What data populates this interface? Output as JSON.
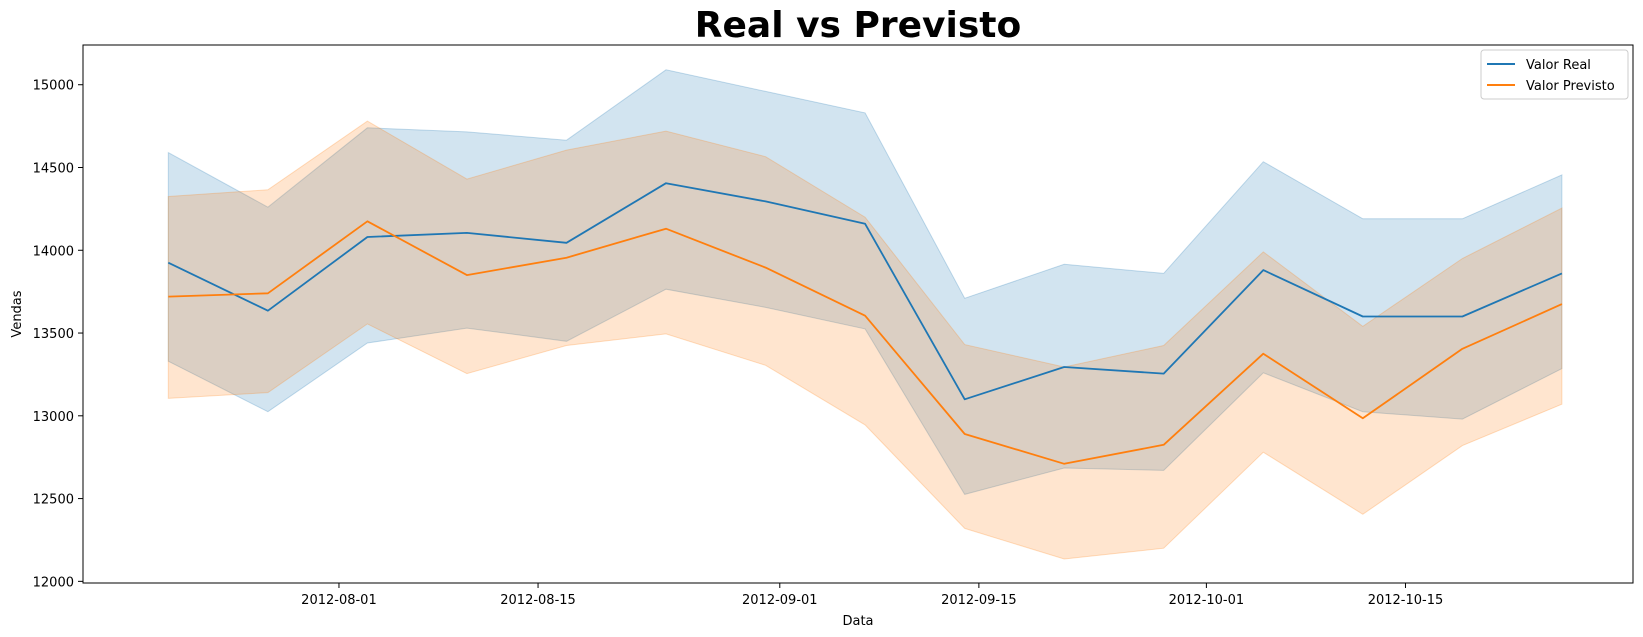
{
  "chart_data": {
    "type": "line",
    "title": "Real vs Previsto",
    "xlabel": "Data",
    "ylabel": "Vendas",
    "x_ticks": [
      "2012-08-01",
      "2012-08-15",
      "2012-09-01",
      "2012-09-15",
      "2012-10-01",
      "2012-10-15"
    ],
    "y_ticks": [
      12000,
      12500,
      13000,
      13500,
      14000,
      14500,
      15000
    ],
    "xlim": [
      "2012-07-14",
      "2012-10-31"
    ],
    "ylim": [
      11990,
      15240
    ],
    "legend_position": "top-right",
    "grid": false,
    "x": [
      "2012-07-20",
      "2012-07-27",
      "2012-08-03",
      "2012-08-10",
      "2012-08-17",
      "2012-08-24",
      "2012-08-31",
      "2012-09-07",
      "2012-09-14",
      "2012-09-21",
      "2012-09-28",
      "2012-10-05",
      "2012-10-12",
      "2012-10-19",
      "2012-10-26"
    ],
    "series": [
      {
        "name": "Valor Real",
        "color": "#1f77b4",
        "values": [
          13925,
          13635,
          14080,
          14105,
          14045,
          14405,
          14295,
          14160,
          13100,
          13295,
          13255,
          13880,
          13600,
          13600,
          13860
        ],
        "ci_lower": [
          13330,
          13025,
          13440,
          13530,
          13450,
          13765,
          13655,
          13525,
          12525,
          12685,
          12670,
          13260,
          13025,
          12980,
          13285
        ],
        "ci_upper": [
          14590,
          14260,
          14740,
          14715,
          14665,
          15090,
          14960,
          14830,
          13710,
          13915,
          13860,
          14535,
          14190,
          14190,
          14455
        ]
      },
      {
        "name": "Valor Previsto",
        "color": "#ff7f0e",
        "values": [
          13720,
          13740,
          14175,
          13850,
          13955,
          14130,
          13895,
          13605,
          12890,
          12710,
          12825,
          13375,
          12985,
          13405,
          13675
        ],
        "ci_lower": [
          13105,
          13140,
          13555,
          13255,
          13425,
          13495,
          13305,
          12945,
          12320,
          12135,
          12200,
          12780,
          12405,
          12820,
          13070
        ],
        "ci_upper": [
          14325,
          14365,
          14780,
          14430,
          14605,
          14720,
          14565,
          14200,
          13430,
          13295,
          13425,
          13990,
          13540,
          13950,
          14255
        ]
      }
    ]
  }
}
